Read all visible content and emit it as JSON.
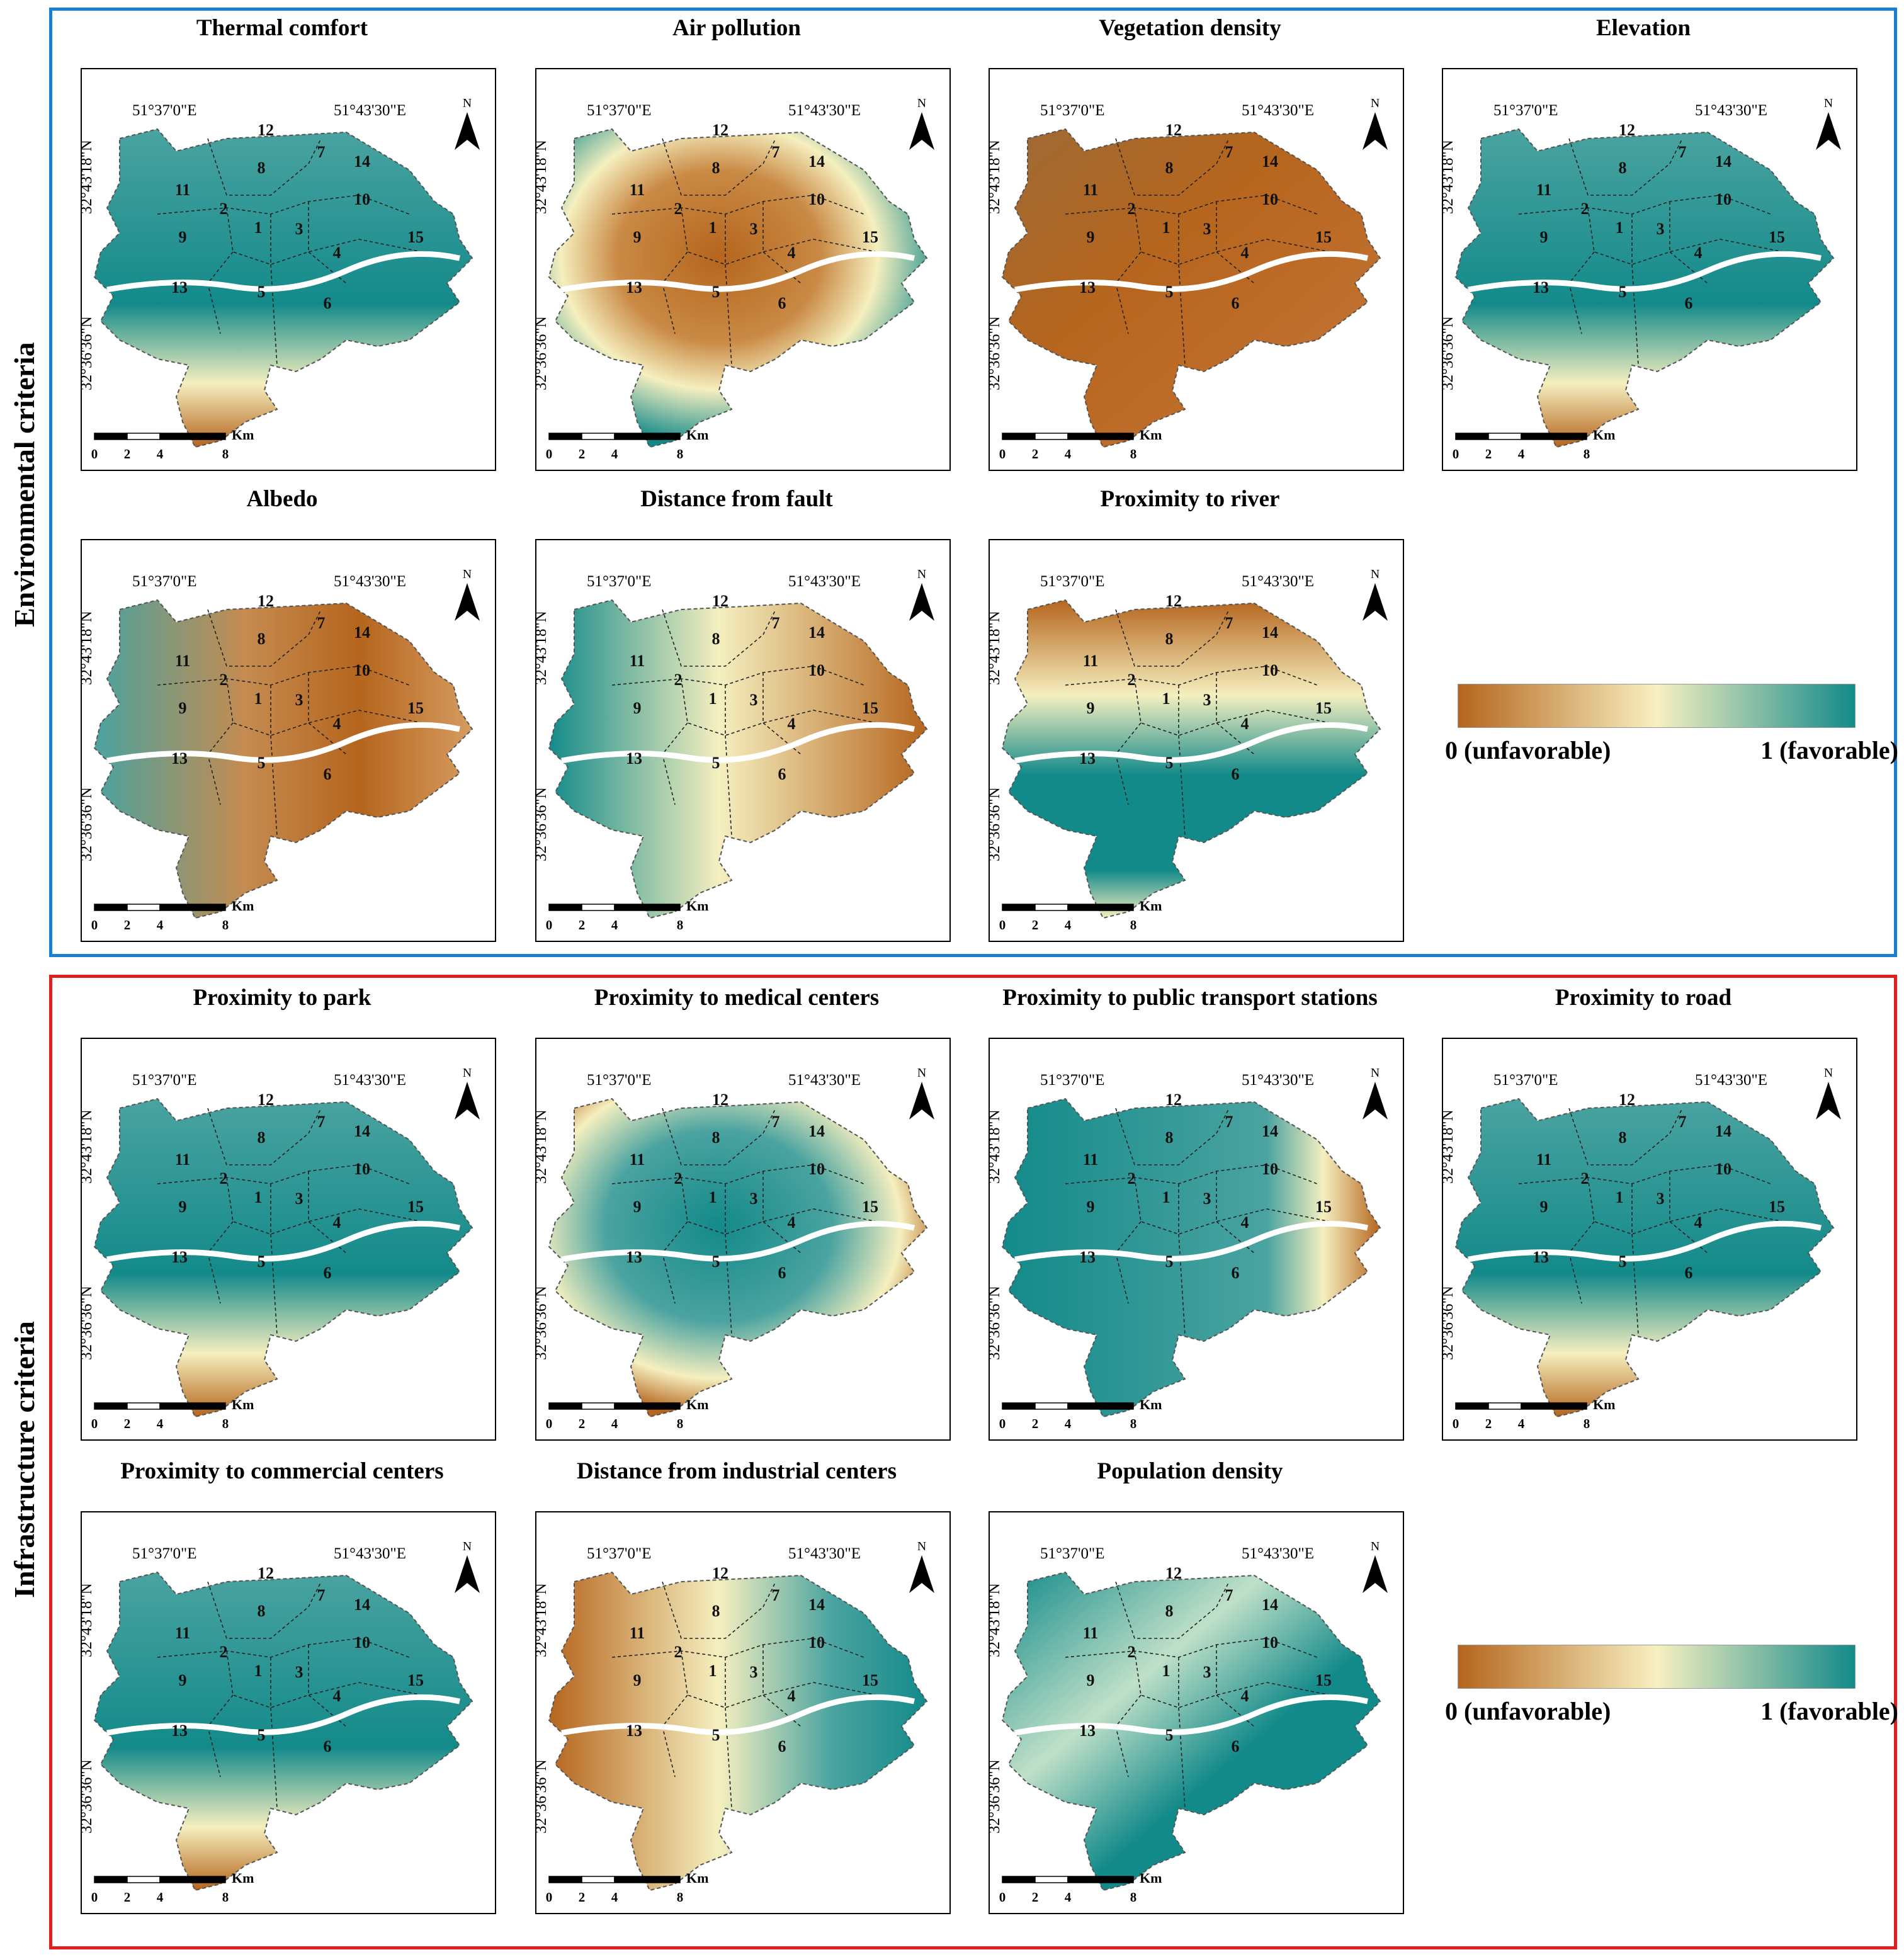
{
  "groups": [
    {
      "label": "Environmental criteria",
      "color": "#1a7fd0"
    },
    {
      "label": "Infrastructure criteria",
      "color": "#e02020"
    }
  ],
  "axis": {
    "lon_labels": [
      "51°37'0\"E",
      "51°43'30\"E"
    ],
    "lat_labels": [
      "32°43'18\"N",
      "32°36'36\"N"
    ],
    "north": "N",
    "scale_unit": "Km",
    "scale_ticks": [
      "0",
      "2",
      "4",
      "8"
    ]
  },
  "districts": [
    "1",
    "2",
    "3",
    "4",
    "5",
    "6",
    "7",
    "8",
    "9",
    "10",
    "11",
    "12",
    "13",
    "14",
    "15"
  ],
  "legend": {
    "low": "0 (unfavorable)",
    "high": "1 (favorable)",
    "colors": [
      "#b5651d",
      "#f7f0c0",
      "#138a8a"
    ]
  },
  "panels": [
    {
      "id": "thermal-comfort",
      "title": "Thermal comfort",
      "pattern": "teal-south-brown"
    },
    {
      "id": "air-pollution",
      "title": "Air pollution",
      "pattern": "center-brown"
    },
    {
      "id": "vegetation-density",
      "title": "Vegetation density",
      "pattern": "mostly-brown"
    },
    {
      "id": "elevation",
      "title": "Elevation",
      "pattern": "teal-south-brown"
    },
    {
      "id": "albedo",
      "title": "Albedo",
      "pattern": "mixed"
    },
    {
      "id": "distance-from-fault",
      "title": "Distance from fault",
      "pattern": "west-teal-east-brown"
    },
    {
      "id": "proximity-to-river",
      "title": "Proximity to river",
      "pattern": "river-teal"
    },
    {
      "id": "proximity-to-park",
      "title": "Proximity to park",
      "pattern": "teal-south-brown"
    },
    {
      "id": "proximity-to-medical-centers",
      "title": "Proximity to medical centers",
      "pattern": "center-teal"
    },
    {
      "id": "proximity-to-public-transport-stations",
      "title": "Proximity to public transport stations",
      "pattern": "teal-east-brown"
    },
    {
      "id": "proximity-to-road",
      "title": "Proximity to road",
      "pattern": "teal-south-brown"
    },
    {
      "id": "proximity-to-commercial-centers",
      "title": "Proximity to commercial centers",
      "pattern": "teal-south-brown"
    },
    {
      "id": "distance-from-industrial-centers",
      "title": "Distance from industrial centers",
      "pattern": "west-brown-east-teal"
    },
    {
      "id": "population-density",
      "title": "Population density",
      "pattern": "mixed-teal"
    }
  ]
}
